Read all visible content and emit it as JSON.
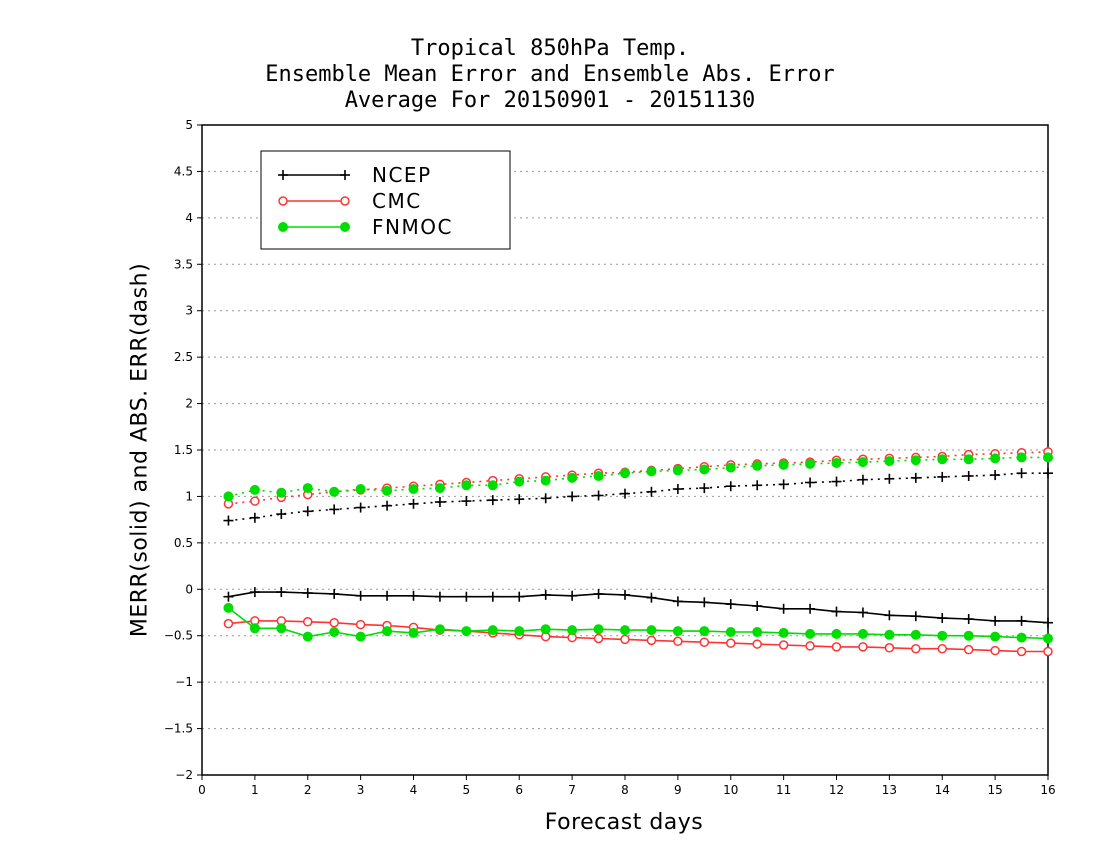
{
  "chart_data": {
    "type": "line",
    "title": [
      "Tropical 850hPa Temp.",
      "Ensemble Mean Error and Ensemble Abs. Error",
      "Average For 20150901 - 20151130"
    ],
    "xlabel": "Forecast days",
    "ylabel": "MERR(solid) and ABS. ERR(dash)",
    "xlim": [
      0,
      16
    ],
    "ylim": [
      -2,
      5
    ],
    "x_ticks": [
      0,
      1,
      2,
      3,
      4,
      5,
      6,
      7,
      8,
      9,
      10,
      11,
      12,
      13,
      14,
      15,
      16
    ],
    "y_ticks": [
      -2,
      -1.5,
      -1,
      -0.5,
      0,
      0.5,
      1,
      1.5,
      2,
      2.5,
      3,
      3.5,
      4,
      4.5,
      5
    ],
    "y_tick_labels": [
      "−2",
      "−1.5",
      "−1",
      "−0.5",
      "0",
      "0.5",
      "1",
      "1.5",
      "2",
      "2.5",
      "3",
      "3.5",
      "4",
      "4.5",
      "5"
    ],
    "grid": "horizontal dotted",
    "legend_position": "top-left",
    "x": [
      0.5,
      1,
      1.5,
      2,
      2.5,
      3,
      3.5,
      4,
      4.5,
      5,
      5.5,
      6,
      6.5,
      7,
      7.5,
      8,
      8.5,
      9,
      9.5,
      10,
      10.5,
      11,
      11.5,
      12,
      12.5,
      13,
      13.5,
      14,
      14.5,
      15,
      15.5,
      16
    ],
    "series": [
      {
        "name": "NCEP",
        "color": "#000000",
        "marker": "plus",
        "merr": [
          -0.08,
          -0.03,
          -0.03,
          -0.04,
          -0.05,
          -0.07,
          -0.07,
          -0.07,
          -0.08,
          -0.08,
          -0.08,
          -0.08,
          -0.06,
          -0.07,
          -0.05,
          -0.06,
          -0.09,
          -0.13,
          -0.14,
          -0.16,
          -0.18,
          -0.21,
          -0.21,
          -0.24,
          -0.25,
          -0.28,
          -0.29,
          -0.31,
          -0.32,
          -0.34,
          -0.34,
          -0.36
        ],
        "abs_err": [
          0.74,
          0.77,
          0.81,
          0.84,
          0.86,
          0.88,
          0.9,
          0.92,
          0.94,
          0.95,
          0.96,
          0.97,
          0.98,
          1.0,
          1.01,
          1.03,
          1.05,
          1.08,
          1.09,
          1.11,
          1.12,
          1.13,
          1.15,
          1.16,
          1.18,
          1.19,
          1.2,
          1.21,
          1.22,
          1.23,
          1.25,
          1.25
        ]
      },
      {
        "name": "CMC",
        "color": "#ff3333",
        "marker": "open-circle",
        "merr": [
          -0.37,
          -0.34,
          -0.34,
          -0.35,
          -0.36,
          -0.38,
          -0.39,
          -0.41,
          -0.44,
          -0.45,
          -0.47,
          -0.49,
          -0.51,
          -0.52,
          -0.53,
          -0.54,
          -0.55,
          -0.56,
          -0.57,
          -0.58,
          -0.59,
          -0.6,
          -0.61,
          -0.62,
          -0.62,
          -0.63,
          -0.64,
          -0.64,
          -0.65,
          -0.66,
          -0.67,
          -0.67
        ],
        "abs_err": [
          0.92,
          0.95,
          0.99,
          1.02,
          1.05,
          1.07,
          1.09,
          1.11,
          1.13,
          1.15,
          1.17,
          1.19,
          1.21,
          1.23,
          1.25,
          1.26,
          1.28,
          1.3,
          1.32,
          1.34,
          1.35,
          1.36,
          1.37,
          1.39,
          1.4,
          1.41,
          1.42,
          1.43,
          1.45,
          1.46,
          1.47,
          1.48
        ]
      },
      {
        "name": "FNMOC",
        "color": "#00dd00",
        "marker": "filled-circle",
        "merr": [
          -0.2,
          -0.42,
          -0.42,
          -0.51,
          -0.46,
          -0.51,
          -0.45,
          -0.47,
          -0.43,
          -0.45,
          -0.44,
          -0.45,
          -0.43,
          -0.44,
          -0.43,
          -0.44,
          -0.44,
          -0.45,
          -0.45,
          -0.46,
          -0.46,
          -0.47,
          -0.48,
          -0.48,
          -0.48,
          -0.49,
          -0.49,
          -0.5,
          -0.5,
          -0.51,
          -0.52,
          -0.53
        ],
        "abs_err": [
          1.0,
          1.07,
          1.04,
          1.09,
          1.05,
          1.08,
          1.06,
          1.08,
          1.09,
          1.12,
          1.12,
          1.16,
          1.17,
          1.2,
          1.22,
          1.25,
          1.27,
          1.28,
          1.29,
          1.31,
          1.33,
          1.34,
          1.35,
          1.36,
          1.37,
          1.38,
          1.39,
          1.4,
          1.4,
          1.41,
          1.42,
          1.42
        ]
      }
    ]
  }
}
